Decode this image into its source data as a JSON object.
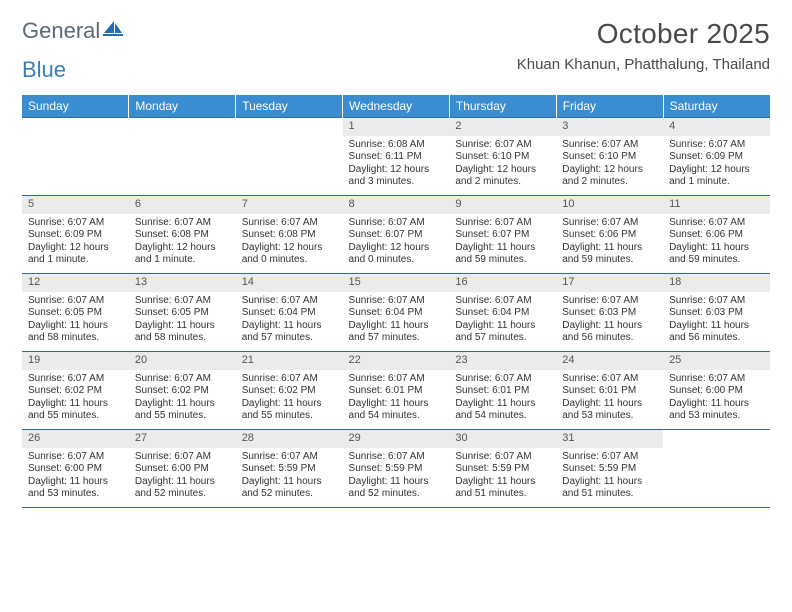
{
  "logo": {
    "text1": "General",
    "text2": "Blue",
    "icon_color": "#1e6db5"
  },
  "title": "October 2025",
  "location": "Khuan Khanun, Phatthalung, Thailand",
  "theme": {
    "header_bg": "#3a8dd0",
    "header_fg": "#ffffff",
    "daynum_bg": "#ebebeb",
    "rule_color": "#2f6aa3",
    "body_fg": "#333333"
  },
  "weekdays": [
    "Sunday",
    "Monday",
    "Tuesday",
    "Wednesday",
    "Thursday",
    "Friday",
    "Saturday"
  ],
  "weeks": [
    [
      null,
      null,
      null,
      {
        "n": "1",
        "sr": "6:08 AM",
        "ss": "6:11 PM",
        "dl": "12 hours and 3 minutes."
      },
      {
        "n": "2",
        "sr": "6:07 AM",
        "ss": "6:10 PM",
        "dl": "12 hours and 2 minutes."
      },
      {
        "n": "3",
        "sr": "6:07 AM",
        "ss": "6:10 PM",
        "dl": "12 hours and 2 minutes."
      },
      {
        "n": "4",
        "sr": "6:07 AM",
        "ss": "6:09 PM",
        "dl": "12 hours and 1 minute."
      }
    ],
    [
      {
        "n": "5",
        "sr": "6:07 AM",
        "ss": "6:09 PM",
        "dl": "12 hours and 1 minute."
      },
      {
        "n": "6",
        "sr": "6:07 AM",
        "ss": "6:08 PM",
        "dl": "12 hours and 1 minute."
      },
      {
        "n": "7",
        "sr": "6:07 AM",
        "ss": "6:08 PM",
        "dl": "12 hours and 0 minutes."
      },
      {
        "n": "8",
        "sr": "6:07 AM",
        "ss": "6:07 PM",
        "dl": "12 hours and 0 minutes."
      },
      {
        "n": "9",
        "sr": "6:07 AM",
        "ss": "6:07 PM",
        "dl": "11 hours and 59 minutes."
      },
      {
        "n": "10",
        "sr": "6:07 AM",
        "ss": "6:06 PM",
        "dl": "11 hours and 59 minutes."
      },
      {
        "n": "11",
        "sr": "6:07 AM",
        "ss": "6:06 PM",
        "dl": "11 hours and 59 minutes."
      }
    ],
    [
      {
        "n": "12",
        "sr": "6:07 AM",
        "ss": "6:05 PM",
        "dl": "11 hours and 58 minutes."
      },
      {
        "n": "13",
        "sr": "6:07 AM",
        "ss": "6:05 PM",
        "dl": "11 hours and 58 minutes."
      },
      {
        "n": "14",
        "sr": "6:07 AM",
        "ss": "6:04 PM",
        "dl": "11 hours and 57 minutes."
      },
      {
        "n": "15",
        "sr": "6:07 AM",
        "ss": "6:04 PM",
        "dl": "11 hours and 57 minutes."
      },
      {
        "n": "16",
        "sr": "6:07 AM",
        "ss": "6:04 PM",
        "dl": "11 hours and 57 minutes."
      },
      {
        "n": "17",
        "sr": "6:07 AM",
        "ss": "6:03 PM",
        "dl": "11 hours and 56 minutes."
      },
      {
        "n": "18",
        "sr": "6:07 AM",
        "ss": "6:03 PM",
        "dl": "11 hours and 56 minutes."
      }
    ],
    [
      {
        "n": "19",
        "sr": "6:07 AM",
        "ss": "6:02 PM",
        "dl": "11 hours and 55 minutes."
      },
      {
        "n": "20",
        "sr": "6:07 AM",
        "ss": "6:02 PM",
        "dl": "11 hours and 55 minutes."
      },
      {
        "n": "21",
        "sr": "6:07 AM",
        "ss": "6:02 PM",
        "dl": "11 hours and 55 minutes."
      },
      {
        "n": "22",
        "sr": "6:07 AM",
        "ss": "6:01 PM",
        "dl": "11 hours and 54 minutes."
      },
      {
        "n": "23",
        "sr": "6:07 AM",
        "ss": "6:01 PM",
        "dl": "11 hours and 54 minutes."
      },
      {
        "n": "24",
        "sr": "6:07 AM",
        "ss": "6:01 PM",
        "dl": "11 hours and 53 minutes."
      },
      {
        "n": "25",
        "sr": "6:07 AM",
        "ss": "6:00 PM",
        "dl": "11 hours and 53 minutes."
      }
    ],
    [
      {
        "n": "26",
        "sr": "6:07 AM",
        "ss": "6:00 PM",
        "dl": "11 hours and 53 minutes."
      },
      {
        "n": "27",
        "sr": "6:07 AM",
        "ss": "6:00 PM",
        "dl": "11 hours and 52 minutes."
      },
      {
        "n": "28",
        "sr": "6:07 AM",
        "ss": "5:59 PM",
        "dl": "11 hours and 52 minutes."
      },
      {
        "n": "29",
        "sr": "6:07 AM",
        "ss": "5:59 PM",
        "dl": "11 hours and 52 minutes."
      },
      {
        "n": "30",
        "sr": "6:07 AM",
        "ss": "5:59 PM",
        "dl": "11 hours and 51 minutes."
      },
      {
        "n": "31",
        "sr": "6:07 AM",
        "ss": "5:59 PM",
        "dl": "11 hours and 51 minutes."
      },
      null
    ]
  ],
  "labels": {
    "sunrise": "Sunrise:",
    "sunset": "Sunset:",
    "daylight": "Daylight:"
  }
}
